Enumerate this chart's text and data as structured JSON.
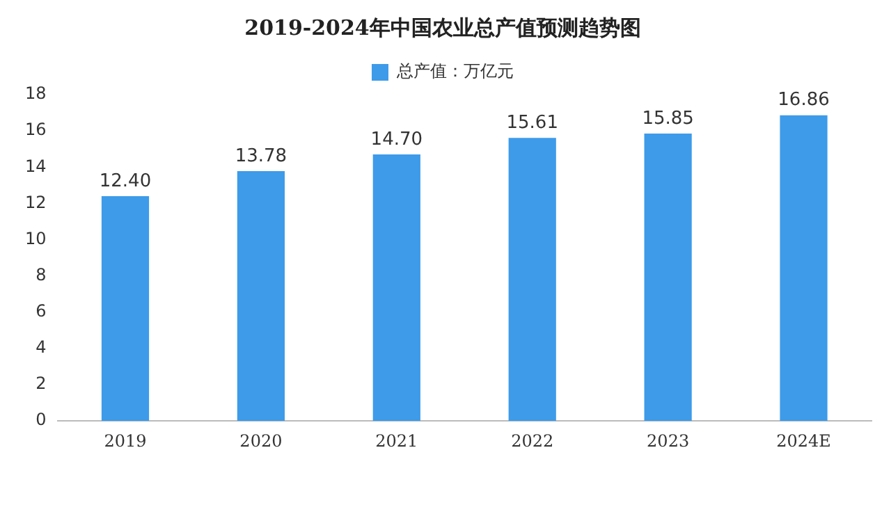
{
  "chart_data": {
    "type": "bar",
    "title": "2019-2024年中国农业总产值预测趋势图",
    "categories": [
      "2019",
      "2020",
      "2021",
      "2022",
      "2023",
      "2024E"
    ],
    "series": [
      {
        "name": "总产值：万亿元",
        "color": "#3d9be9",
        "values": [
          12.4,
          13.78,
          14.7,
          15.61,
          15.85,
          16.86
        ]
      }
    ],
    "value_labels": [
      "12.40",
      "13.78",
      "14.70",
      "15.61",
      "15.85",
      "16.86"
    ],
    "ylim": [
      0,
      18
    ],
    "yticks": [
      0,
      2,
      4,
      6,
      8,
      10,
      12,
      14,
      16,
      18
    ],
    "grid": false,
    "legend": "top"
  }
}
